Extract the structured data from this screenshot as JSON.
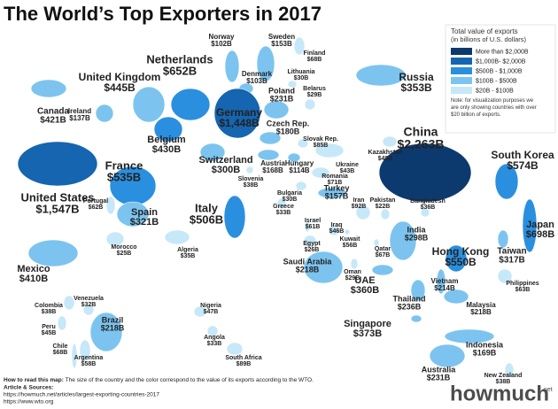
{
  "header": {
    "title": "The World’s Top Exporters in 2017"
  },
  "legend": {
    "title": "Total value of exports",
    "subtitle": "(in billions of U.S. dollars)",
    "items": [
      "More than $2,000B",
      "$1,000B- $2,000B",
      "$500B - $1,000B",
      "$100B - $500B",
      "$20B - $100B"
    ],
    "note": "Note: for visualization purposes we are only showing countries with over $20 billion of exports."
  },
  "countries": [
    {
      "name": "Norway",
      "value": "$102B"
    },
    {
      "name": "Sweden",
      "value": "$153B"
    },
    {
      "name": "Finland",
      "value": "$68B"
    },
    {
      "name": "Netherlands",
      "value": "$652B"
    },
    {
      "name": "Denmark",
      "value": "$103B"
    },
    {
      "name": "Lithuania",
      "value": "$30B"
    },
    {
      "name": "United Kingdom",
      "value": "$445B"
    },
    {
      "name": "Ireland",
      "value": "$137B"
    },
    {
      "name": "Poland",
      "value": "$231B"
    },
    {
      "name": "Belarus",
      "value": "$29B"
    },
    {
      "name": "Canada",
      "value": "$421B"
    },
    {
      "name": "Russia",
      "value": "$353B"
    },
    {
      "name": "Germany",
      "value": "$1,448B"
    },
    {
      "name": "Czech Rep.",
      "value": "$180B"
    },
    {
      "name": "Belgium",
      "value": "$430B"
    },
    {
      "name": "Slovak Rep.",
      "value": "$85B"
    },
    {
      "name": "Kazakhstan",
      "value": "$48B"
    },
    {
      "name": "China",
      "value": "$2,263B"
    },
    {
      "name": "Switzerland",
      "value": "$300B"
    },
    {
      "name": "Austria",
      "value": "$168B"
    },
    {
      "name": "Hungary",
      "value": "$114B"
    },
    {
      "name": "Ukraine",
      "value": "$43B"
    },
    {
      "name": "France",
      "value": "$535B"
    },
    {
      "name": "South Korea",
      "value": "$574B"
    },
    {
      "name": "Slovenia",
      "value": "$38B"
    },
    {
      "name": "Romania",
      "value": "$71B"
    },
    {
      "name": "United States",
      "value": "$1,547B"
    },
    {
      "name": "Portugal",
      "value": "$62B"
    },
    {
      "name": "Bulgaria",
      "value": "$30B"
    },
    {
      "name": "Turkey",
      "value": "$157B"
    },
    {
      "name": "Iran",
      "value": "$92B"
    },
    {
      "name": "Pakistan",
      "value": "$22B"
    },
    {
      "name": "Bangladesh",
      "value": "$36B"
    },
    {
      "name": "Spain",
      "value": "$321B"
    },
    {
      "name": "Italy",
      "value": "$506B"
    },
    {
      "name": "Greece",
      "value": "$33B"
    },
    {
      "name": "Israel",
      "value": "$61B"
    },
    {
      "name": "Iraq",
      "value": "$46B"
    },
    {
      "name": "Kuwait",
      "value": "$56B"
    },
    {
      "name": "India",
      "value": "$298B"
    },
    {
      "name": "Japan",
      "value": "$698B"
    },
    {
      "name": "Egypt",
      "value": "$26B"
    },
    {
      "name": "Qatar",
      "value": "$67B"
    },
    {
      "name": "Taiwan",
      "value": "$317B"
    },
    {
      "name": "Hong Kong",
      "value": "$550B"
    },
    {
      "name": "Morocco",
      "value": "$25B"
    },
    {
      "name": "Algeria",
      "value": "$35B"
    },
    {
      "name": "Saudi Arabia",
      "value": "$218B"
    },
    {
      "name": "Oman",
      "value": "$29B"
    },
    {
      "name": "UAE",
      "value": "$360B"
    },
    {
      "name": "Mexico",
      "value": "$410B"
    },
    {
      "name": "Vietnam",
      "value": "$214B"
    },
    {
      "name": "Philippines",
      "value": "$63B"
    },
    {
      "name": "Colombia",
      "value": "$38B"
    },
    {
      "name": "Venezuela",
      "value": "$32B"
    },
    {
      "name": "Nigeria",
      "value": "$47B"
    },
    {
      "name": "Thailand",
      "value": "$236B"
    },
    {
      "name": "Malaysia",
      "value": "$218B"
    },
    {
      "name": "Brazil",
      "value": "$218B"
    },
    {
      "name": "Peru",
      "value": "$45B"
    },
    {
      "name": "Singapore",
      "value": "$373B"
    },
    {
      "name": "Angola",
      "value": "$33B"
    },
    {
      "name": "Chile",
      "value": "$68B"
    },
    {
      "name": "Argentina",
      "value": "$58B"
    },
    {
      "name": "South Africa",
      "value": "$89B"
    },
    {
      "name": "Indonesia",
      "value": "$169B"
    },
    {
      "name": "Australia",
      "value": "$231B"
    },
    {
      "name": "New Zealand",
      "value": "$38B"
    }
  ],
  "footer": {
    "how_to_read_label": "How to read this map:",
    "how_to_read": "The size of the country and the color correspond to the value of its exports according to the WTO.",
    "sources_label": "Article & Sources:",
    "links": [
      "https://howmuch.net/articles/largest-exporting-countries-2017",
      "https://www.wto.org"
    ]
  },
  "logo": {
    "name": "howmuch",
    "suffix": "net"
  }
}
